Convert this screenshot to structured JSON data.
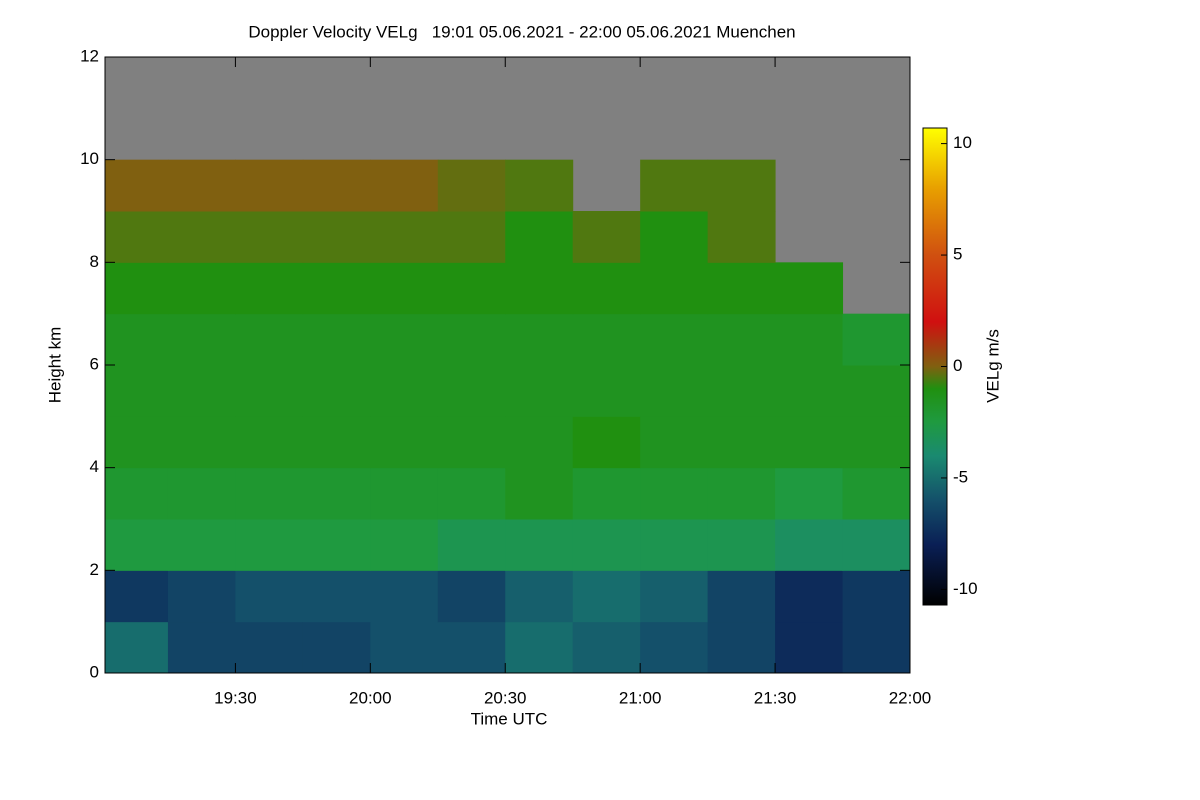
{
  "chart_data": {
    "type": "heatmap",
    "title": "Doppler Velocity VELg   19:01 05.06.2021 - 22:00 05.06.2021 Muenchen",
    "x_label": "Time UTC",
    "y_label": "Height km",
    "colorbar_label": "VELg m/s",
    "x_bins": [
      19.0167,
      19.25,
      19.5,
      19.75,
      20.0,
      20.25,
      20.5,
      20.75,
      21.0,
      21.25,
      21.5,
      21.75,
      22.0
    ],
    "y_bins": [
      0,
      1,
      2,
      3,
      4,
      5,
      6,
      7,
      8,
      9,
      10,
      11,
      12
    ],
    "z": [
      [
        -5,
        -6.5,
        -6.5,
        -6.5,
        -6,
        -6,
        -5,
        -5.5,
        -6,
        -6.5,
        -7.5,
        -7
      ],
      [
        -7,
        -6.5,
        -6,
        -6,
        -6,
        -6.5,
        -5.5,
        -5,
        -5.5,
        -6.5,
        -7.5,
        -7
      ],
      [
        -2.5,
        -2.5,
        -2.5,
        -2.5,
        -2.5,
        -3,
        -3,
        -3,
        -3,
        -3,
        -3.5,
        -3.5
      ],
      [
        -2,
        -2,
        -2,
        -2,
        -2,
        -2,
        -1.5,
        -2,
        -2,
        -2,
        -2.5,
        -2
      ],
      [
        -1.5,
        -1.5,
        -1.5,
        -1.5,
        -1.5,
        -1.5,
        -1.5,
        -1,
        -1.5,
        -1.5,
        -1.5,
        -1.5
      ],
      [
        -1.5,
        -1.5,
        -1.5,
        -1.5,
        -1.5,
        -1.5,
        -1.5,
        -1.5,
        -1.5,
        -1.5,
        -1.5,
        -1.5
      ],
      [
        -1.5,
        -1.5,
        -1.5,
        -1.5,
        -1.5,
        -1.5,
        -1.5,
        -1.5,
        -1.5,
        -1.5,
        -1.5,
        -2
      ],
      [
        -1,
        -1,
        -1,
        -1,
        -1,
        -1,
        -1,
        -1,
        -1,
        -1,
        -1,
        null
      ],
      [
        -0.5,
        -0.5,
        -0.5,
        -0.5,
        -0.5,
        -0.5,
        -1,
        -0.5,
        -1,
        -0.5,
        null,
        null
      ],
      [
        0,
        0,
        0,
        0,
        0,
        -0.3,
        -0.5,
        null,
        -0.5,
        -0.5,
        null,
        null
      ],
      [
        null,
        null,
        null,
        null,
        null,
        null,
        null,
        null,
        null,
        null,
        null,
        null
      ],
      [
        null,
        null,
        null,
        null,
        null,
        null,
        null,
        null,
        null,
        null,
        null,
        null
      ]
    ],
    "missing_color": "#808080",
    "colorscale": [
      [
        -10.7,
        "#000000"
      ],
      [
        -8,
        "#0a1f55"
      ],
      [
        -6,
        "#14506a"
      ],
      [
        -4,
        "#1a8a70"
      ],
      [
        -2.5,
        "#1f9a40"
      ],
      [
        -1,
        "#209010"
      ],
      [
        0,
        "#806010"
      ],
      [
        2,
        "#d01010"
      ],
      [
        5,
        "#d05010"
      ],
      [
        8,
        "#e8a000"
      ],
      [
        10.7,
        "#ffff00"
      ]
    ],
    "xlim": [
      19.0167,
      22.0
    ],
    "xticks": [
      {
        "value": 19.5,
        "label": "19:30"
      },
      {
        "value": 20.0,
        "label": "20:00"
      },
      {
        "value": 20.5,
        "label": "20:30"
      },
      {
        "value": 21.0,
        "label": "21:00"
      },
      {
        "value": 21.5,
        "label": "21:30"
      },
      {
        "value": 22.0,
        "label": "22:00"
      }
    ],
    "ylim": [
      0,
      12
    ],
    "yticks": [
      0,
      2,
      4,
      6,
      8,
      10,
      12
    ],
    "zlim": [
      -10.7,
      10.7
    ],
    "zticks": [
      -10,
      -5,
      0,
      5,
      10
    ]
  }
}
